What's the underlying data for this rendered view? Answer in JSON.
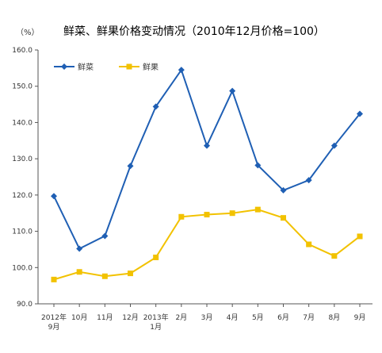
{
  "chart_data": {
    "type": "line",
    "title": "鲜菜、鲜果价格变动情况（2010年12月价格=100）",
    "unit_label": "（%）",
    "xlabel": "",
    "ylabel": "",
    "ylim": [
      90.0,
      160.0
    ],
    "yticks": [
      "90.0",
      "100.0",
      "110.0",
      "120.0",
      "130.0",
      "140.0",
      "150.0",
      "160.0"
    ],
    "categories": [
      [
        "2012年",
        "9月"
      ],
      [
        "10月"
      ],
      [
        "11月"
      ],
      [
        "12月"
      ],
      [
        "2013年",
        "1月"
      ],
      [
        "2月"
      ],
      [
        "3月"
      ],
      [
        "4月"
      ],
      [
        "5月"
      ],
      [
        "6月"
      ],
      [
        "7月"
      ],
      [
        "8月"
      ],
      [
        "9月"
      ]
    ],
    "grid": false,
    "legend_position": "top-left",
    "series": [
      {
        "name": "鲜菜",
        "color": "#1f5fb4",
        "marker": "diamond",
        "values": [
          119.7,
          105.2,
          108.7,
          128.0,
          144.4,
          154.5,
          133.6,
          148.7,
          128.2,
          121.3,
          124.1,
          133.6,
          142.4
        ]
      },
      {
        "name": "鲜果",
        "color": "#f2c200",
        "marker": "square",
        "values": [
          96.7,
          98.8,
          97.6,
          98.4,
          102.8,
          114.0,
          114.6,
          115.0,
          116.0,
          113.7,
          106.4,
          103.2,
          108.6
        ]
      }
    ]
  }
}
